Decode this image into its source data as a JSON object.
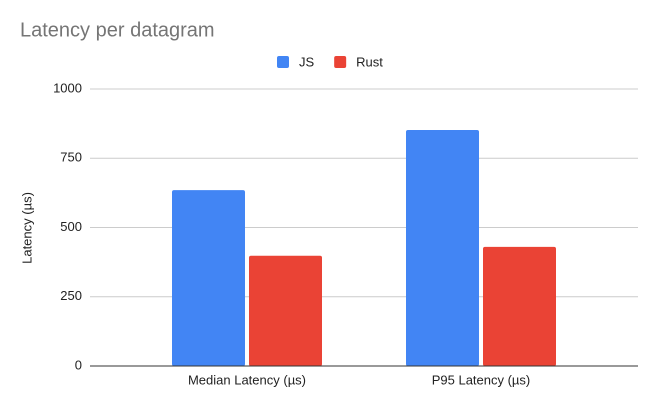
{
  "chart_data": {
    "type": "bar",
    "title": "Latency per datagram",
    "categories": [
      "Median Latency (µs)",
      "P95 Latency (µs)"
    ],
    "series": [
      {
        "name": "JS",
        "color": "#4285f4",
        "values": [
          635,
          852
        ]
      },
      {
        "name": "Rust",
        "color": "#ea4335",
        "values": [
          398,
          430
        ]
      }
    ],
    "y_label": "Latency (µs)",
    "ylim": [
      0,
      1000
    ],
    "yticks": [
      0,
      250,
      500,
      750,
      1000
    ],
    "grid": true,
    "legend": "top"
  }
}
